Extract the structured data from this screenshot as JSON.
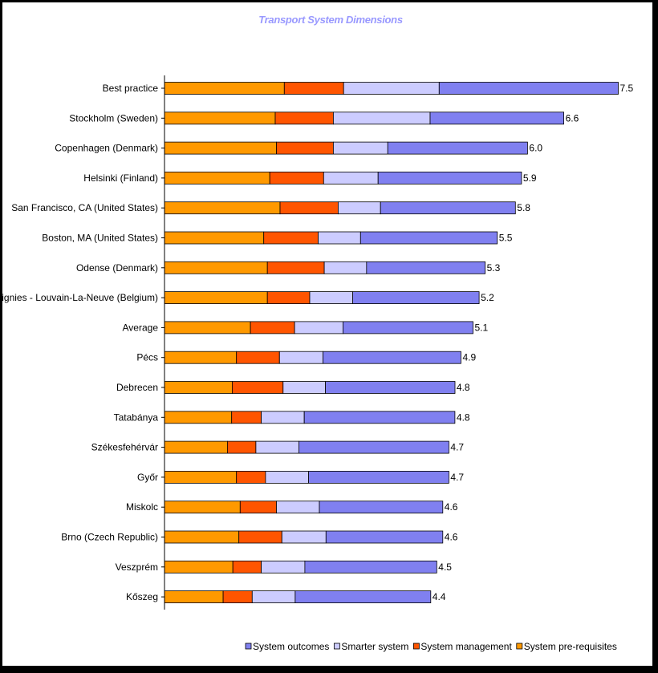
{
  "chart_data": {
    "type": "bar",
    "orientation": "horizontal",
    "stacked": true,
    "title": "Transport System Dimensions",
    "xlabel": "",
    "ylabel": "",
    "xlim": [
      0,
      8
    ],
    "grid": false,
    "legend_position": "bottom-right",
    "categories": [
      "Best practice",
      "Stockholm (Sweden)",
      "Copenhagen (Denmark)",
      "Helsinki (Finland)",
      "San Francisco, CA (United States)",
      "Boston, MA (United States)",
      "Odense (Denmark)",
      "Ottignies - Louvain-La-Neuve (Belgium)",
      "Average",
      "Pécs",
      "Debrecen",
      "Tatabánya",
      "Székesfehérvár",
      "Győr",
      "Miskolc",
      "Brno (Czech Republic)",
      "Veszprém",
      "Kőszeg"
    ],
    "totals": [
      7.5,
      6.6,
      6.0,
      5.9,
      5.8,
      5.5,
      5.3,
      5.2,
      5.1,
      4.9,
      4.8,
      4.8,
      4.7,
      4.7,
      4.6,
      4.6,
      4.5,
      4.4
    ],
    "total_labels": [
      "7.5",
      "6.6",
      "6.0",
      "5.9",
      "5.8",
      "5.5",
      "5.3",
      "5.2",
      "5.1",
      "4.9",
      "4.8",
      "4.8",
      "4.7",
      "4.7",
      "4.6",
      "4.6",
      "4.5",
      "4.4"
    ],
    "series": [
      {
        "name": "System pre-requisites",
        "color": "#ff9900",
        "values": [
          1.98,
          1.83,
          1.85,
          1.74,
          1.91,
          1.64,
          1.7,
          1.7,
          1.42,
          1.19,
          1.12,
          1.11,
          1.04,
          1.19,
          1.25,
          1.23,
          1.13,
          0.97
        ]
      },
      {
        "name": "System management",
        "color": "#ff5500",
        "values": [
          0.98,
          0.96,
          0.94,
          0.89,
          0.96,
          0.9,
          0.94,
          0.7,
          0.73,
          0.71,
          0.84,
          0.49,
          0.47,
          0.48,
          0.6,
          0.71,
          0.47,
          0.48
        ]
      },
      {
        "name": "Smarter system",
        "color": "#ccccff",
        "values": [
          1.58,
          1.6,
          0.9,
          0.9,
          0.7,
          0.7,
          0.7,
          0.71,
          0.8,
          0.72,
          0.7,
          0.71,
          0.71,
          0.71,
          0.71,
          0.73,
          0.72,
          0.71
        ]
      },
      {
        "name": "System outcomes",
        "color": "#8080f0",
        "values": [
          2.96,
          2.21,
          2.31,
          2.37,
          2.23,
          2.26,
          1.96,
          2.09,
          2.15,
          2.28,
          2.14,
          2.49,
          2.48,
          2.32,
          2.04,
          1.93,
          2.18,
          2.24
        ]
      }
    ],
    "legend_order": [
      "System outcomes",
      "Smarter system",
      "System management",
      "System pre-requisites"
    ]
  }
}
